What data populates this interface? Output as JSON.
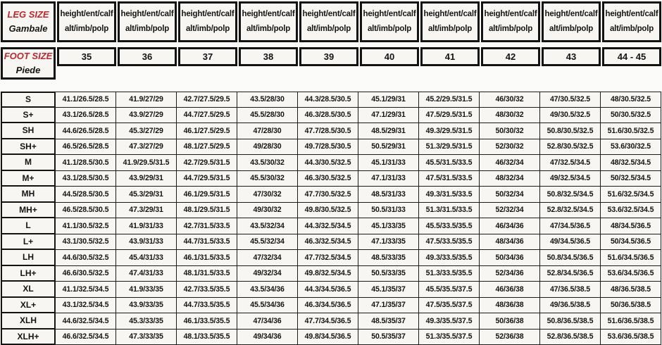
{
  "colors": {
    "accent_red": "#c1272d",
    "cell_bg": "#f7f6f3",
    "border": "#131313"
  },
  "leg_header": {
    "title": "LEG SIZE",
    "subtitle": "Gambale",
    "column_label": {
      "line1": "height/ent/calf",
      "line2": "alt/imb/polp"
    }
  },
  "foot_header": {
    "title": "FOOT SIZE",
    "subtitle": "Piede",
    "sizes": [
      "35",
      "36",
      "37",
      "38",
      "39",
      "40",
      "41",
      "42",
      "43",
      "44 - 45"
    ]
  },
  "table": {
    "rows": [
      {
        "label": "S",
        "cells": [
          "41.1/26.5/28.5",
          "41.9/27/29",
          "42.7/27.5/29.5",
          "43.5/28/30",
          "44.3/28.5/30.5",
          "45.1/29/31",
          "45.2/29.5/31.5",
          "46/30/32",
          "47/30.5/32.5",
          "48/30.5/32.5"
        ]
      },
      {
        "label": "S+",
        "cells": [
          "43.1/26.5/28.5",
          "43.9/27/29",
          "44.7/27.5/29.5",
          "45.5/28/30",
          "46.3/28.5/30.5",
          "47.1/29/31",
          "47.5/29.5/31.5",
          "48/30/32",
          "49/30.5/32.5",
          "50/30.5/32.5"
        ]
      },
      {
        "label": "SH",
        "cells": [
          "44.6/26.5/28.5",
          "45.3/27/29",
          "46.1/27.5/29.5",
          "47/28/30",
          "47.7/28.5/30.5",
          "48.5/29/31",
          "49.3/29.5/31.5",
          "50/30/32",
          "50.8/30.5/32.5",
          "51.6/30.5/32.5"
        ]
      },
      {
        "label": "SH+",
        "cells": [
          "46.5/26.5/28.5",
          "47.3/27/29",
          "48.1/27.5/29.5",
          "49/28/30",
          "49.7/28.5/30.5",
          "50.5/29/31",
          "51.3/29.5/31.5",
          "52/30/32",
          "52.8/30.5/32.5",
          "53.6/30/32.5"
        ]
      },
      {
        "label": "M",
        "cells": [
          "41.1/28.5/30.5",
          "41.9/29.5/31.5",
          "42.7/29.5/31.5",
          "43.5/30/32",
          "44.3/30.5/32.5",
          "45.1/31/33",
          "45.5/31.5/33.5",
          "46/32/34",
          "47/32.5/34.5",
          "48/32.5/34.5"
        ]
      },
      {
        "label": "M+",
        "cells": [
          "43.1/28.5/30.5",
          "43.9/29/31",
          "44.7/29.5/31.5",
          "45.5/30/32",
          "46.3/30.5/32.5",
          "47.1/31/33",
          "47.5/31.5/33.5",
          "48/32/34",
          "49/32.5/34.5",
          "50/32.5/34.5"
        ]
      },
      {
        "label": "MH",
        "cells": [
          "44.5/28.5/30.5",
          "45.3/29/31",
          "46.1/29.5/31.5",
          "47/30/32",
          "47.7/30.5/32.5",
          "48.5/31/33",
          "49.3/31.5/33.5",
          "50/32/34",
          "50.8/32.5/34.5",
          "51.6/32.5/34.5"
        ]
      },
      {
        "label": "MH+",
        "cells": [
          "46.5/28.5/30.5",
          "47.3/29/31",
          "48.1/29.5/31.5",
          "49/30/32",
          "49.8/30.5/32.5",
          "50.5/31/33",
          "51.3/31.5/33.5",
          "52/32/34",
          "52.8/32.5/34.5",
          "53.6/32.5/34.5"
        ]
      },
      {
        "label": "L",
        "cells": [
          "41.1/30.5/32.5",
          "41.9/31/33",
          "42.7/31.5/33.5",
          "43.5/32/34",
          "44.3/32.5/34.5",
          "45.1/33/35",
          "45.5/33.5/35.5",
          "46/34/36",
          "47/34.5/36.5",
          "48/34.5/36.5"
        ]
      },
      {
        "label": "L+",
        "cells": [
          "43.1/30.5/32.5",
          "43.9/31/33",
          "44.7/31.5/33.5",
          "45.5/32/34",
          "46.3/32.5/34.5",
          "47.1/33/35",
          "47.5/33.5/35.5",
          "48/34/36",
          "49/34.5/36.5",
          "50/34.5/36.5"
        ]
      },
      {
        "label": "LH",
        "cells": [
          "44.6/30.5/32.5",
          "45.4/31/33",
          "46.1/31.5/33.5",
          "47/32/34",
          "47.7/32.5/34.5",
          "48.5/33/35",
          "49.3/33.5/35.5",
          "50/34/36",
          "50.8/34.5/36.5",
          "51.6/34.5/36.5"
        ]
      },
      {
        "label": "LH+",
        "cells": [
          "46.6/30.5/32.5",
          "47.4/31/33",
          "48.1/31.5/33.5",
          "49/32/34",
          "49.8/32.5/34.5",
          "50.5/33/35",
          "51.3/33.5/35.5",
          "52/34/36",
          "52.8/34.5/36.5",
          "53.6/34.5/36.5"
        ]
      },
      {
        "label": "XL",
        "cells": [
          "41.1/32.5/34.5",
          "41.9/33/35",
          "42.7/33.5/35.5",
          "43.5/34/36",
          "44.3/34.5/36.5",
          "45.1/35/37",
          "45.5/35.5/37.5",
          "46/36/38",
          "47/36.5/38.5",
          "48/36.5/38.5"
        ]
      },
      {
        "label": "XL+",
        "cells": [
          "43.1/32.5/34.5",
          "43.9/33/35",
          "44.7/33.5/35.5",
          "45.5/34/36",
          "46.3/34.5/36.5",
          "47.1/35/37",
          "47.5/35.5/37.5",
          "48/36/38",
          "49/36.5/38.5",
          "50/36.5/38.5"
        ]
      },
      {
        "label": "XLH",
        "cells": [
          "44.6/32.5/34.5",
          "45.3/33/35",
          "46.1/33.5/35.5",
          "47/34/36",
          "47.7/34.5/36.5",
          "48.5/35/37",
          "49.3/35.5/37.5",
          "50/36/38",
          "50.8/36.5/38.5",
          "51.6/36.5/38.5"
        ]
      },
      {
        "label": "XLH+",
        "cells": [
          "46.6/32.5/34.5",
          "47.3/33/35",
          "48.1/33.5/35.5",
          "49/34/36",
          "49.8/34.5/36.5",
          "50.5/35/37",
          "51.3/35.5/37.5",
          "52/36/38",
          "52.8/36.5/38.5",
          "53.6/36.5/38.5"
        ]
      }
    ]
  }
}
